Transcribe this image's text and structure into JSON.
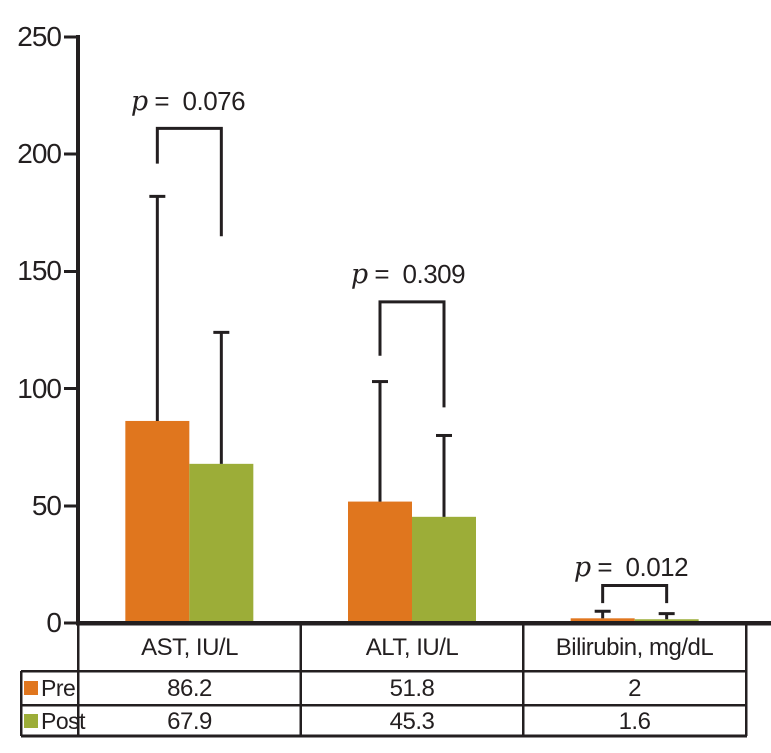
{
  "figure": {
    "background": "#FFFFFF",
    "ink_color": "#231F20"
  },
  "chart_data": {
    "type": "bar",
    "title": "",
    "xlabel": "",
    "ylabel": "",
    "ylim": [
      0,
      250
    ],
    "yticks": [
      0,
      50,
      100,
      150,
      200,
      250
    ],
    "grid": false,
    "legend_position": "table-left-column",
    "categories": [
      "AST, IU/L",
      "ALT, IU/L",
      "Bilirubin, mg/dL"
    ],
    "series": [
      {
        "name": "Pre",
        "color": "#E0761E",
        "values": [
          86.2,
          51.8,
          2
        ],
        "error_bar_top": [
          182,
          103,
          5
        ]
      },
      {
        "name": "Post",
        "color": "#9CAD38",
        "values": [
          67.9,
          45.3,
          1.6
        ],
        "error_bar_top": [
          124,
          80,
          4
        ]
      }
    ],
    "significance_brackets": [
      {
        "category": "AST, IU/L",
        "label_var": "p",
        "label_text": " =  0.076",
        "top": 211,
        "left_arm_bottom": 196,
        "right_arm_bottom": 165
      },
      {
        "category": "ALT, IU/L",
        "label_var": "p",
        "label_text": " =  0.309",
        "top": 137,
        "left_arm_bottom": 114,
        "right_arm_bottom": 92
      },
      {
        "category": "Bilirubin, mg/dL",
        "label_var": "p",
        "label_text": " =  0.012",
        "top": 16,
        "left_arm_bottom": 8.5,
        "right_arm_bottom": 8.5
      }
    ]
  }
}
